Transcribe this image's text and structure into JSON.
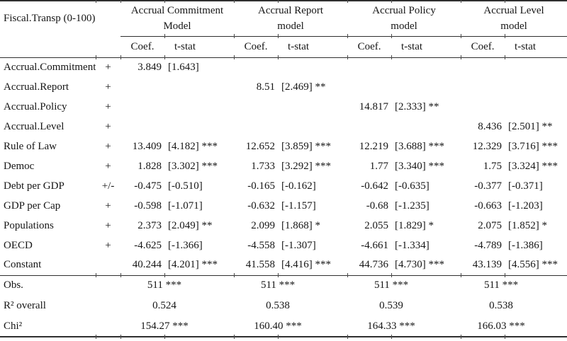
{
  "table": {
    "corner_label": "Fiscal.Transp (0-100)",
    "col_headers": {
      "coef": "Coef.",
      "tstat": "t-stat"
    },
    "models": [
      {
        "line1": "Accrual Commitment",
        "line2": "Model"
      },
      {
        "line1": "Accrual Report",
        "line2": "model"
      },
      {
        "line1": "Accrual Policy",
        "line2": "model"
      },
      {
        "line1": "Accrual Level",
        "line2": "model"
      }
    ],
    "rows": [
      {
        "label": "Accrual.Commitment",
        "sign": "+",
        "cells": [
          {
            "coef": "3.849",
            "tstat": "[1.643]"
          },
          {
            "coef": "",
            "tstat": ""
          },
          {
            "coef": "",
            "tstat": ""
          },
          {
            "coef": "",
            "tstat": ""
          }
        ]
      },
      {
        "label": "Accrual.Report",
        "sign": "+",
        "cells": [
          {
            "coef": "",
            "tstat": ""
          },
          {
            "coef": "8.51",
            "tstat": "[2.469] **"
          },
          {
            "coef": "",
            "tstat": ""
          },
          {
            "coef": "",
            "tstat": ""
          }
        ]
      },
      {
        "label": "Accrual.Policy",
        "sign": "+",
        "cells": [
          {
            "coef": "",
            "tstat": ""
          },
          {
            "coef": "",
            "tstat": ""
          },
          {
            "coef": "14.817",
            "tstat": "[2.333] **"
          },
          {
            "coef": "",
            "tstat": ""
          }
        ]
      },
      {
        "label": "Accrual.Level",
        "sign": "+",
        "cells": [
          {
            "coef": "",
            "tstat": ""
          },
          {
            "coef": "",
            "tstat": ""
          },
          {
            "coef": "",
            "tstat": ""
          },
          {
            "coef": "8.436",
            "tstat": "[2.501] **"
          }
        ]
      },
      {
        "label": "Rule of Law",
        "sign": "+",
        "cells": [
          {
            "coef": "13.409",
            "tstat": "[4.182] ***"
          },
          {
            "coef": "12.652",
            "tstat": "[3.859] ***"
          },
          {
            "coef": "12.219",
            "tstat": "[3.688] ***"
          },
          {
            "coef": "12.329",
            "tstat": "[3.716] ***"
          }
        ]
      },
      {
        "label": "Democ",
        "sign": "+",
        "cells": [
          {
            "coef": "1.828",
            "tstat": "[3.302] ***"
          },
          {
            "coef": "1.733",
            "tstat": "[3.292] ***"
          },
          {
            "coef": "1.77",
            "tstat": "[3.340] ***"
          },
          {
            "coef": "1.75",
            "tstat": "[3.324] ***"
          }
        ]
      },
      {
        "label": "Debt per GDP",
        "sign": "+/-",
        "cells": [
          {
            "coef": "-0.475",
            "tstat": "[-0.510]"
          },
          {
            "coef": "-0.165",
            "tstat": "[-0.162]"
          },
          {
            "coef": "-0.642",
            "tstat": "[-0.635]"
          },
          {
            "coef": "-0.377",
            "tstat": "[-0.371]"
          }
        ]
      },
      {
        "label": "GDP per Cap",
        "sign": "+",
        "cells": [
          {
            "coef": "-0.598",
            "tstat": "[-1.071]"
          },
          {
            "coef": "-0.632",
            "tstat": "[-1.157]"
          },
          {
            "coef": "-0.68",
            "tstat": "[-1.235]"
          },
          {
            "coef": "-0.663",
            "tstat": "[-1.203]"
          }
        ]
      },
      {
        "label": "Populations",
        "sign": "+",
        "cells": [
          {
            "coef": "2.373",
            "tstat": "[2.049] **"
          },
          {
            "coef": "2.099",
            "tstat": "[1.868] *"
          },
          {
            "coef": "2.055",
            "tstat": "[1.829] *"
          },
          {
            "coef": "2.075",
            "tstat": "[1.852] *"
          }
        ]
      },
      {
        "label": "OECD",
        "sign": "+",
        "cells": [
          {
            "coef": "-4.625",
            "tstat": "[-1.366]"
          },
          {
            "coef": "-4.558",
            "tstat": "[-1.307]"
          },
          {
            "coef": "-4.661",
            "tstat": "[-1.334]"
          },
          {
            "coef": "-4.789",
            "tstat": "[-1.386]"
          }
        ]
      },
      {
        "label": "Constant",
        "sign": "",
        "cells": [
          {
            "coef": "40.244",
            "tstat": "[4.201] ***"
          },
          {
            "coef": "41.558",
            "tstat": "[4.416] ***"
          },
          {
            "coef": "44.736",
            "tstat": "[4.730] ***"
          },
          {
            "coef": "43.139",
            "tstat": "[4.556] ***"
          }
        ]
      }
    ],
    "summary_rows": [
      {
        "label": "Obs.",
        "values": [
          "511 ***",
          "511 ***",
          "511 ***",
          "511 ***"
        ]
      },
      {
        "label": "R² overall",
        "values": [
          "0.524",
          "0.538",
          "0.539",
          "0.538"
        ]
      },
      {
        "label": "Chi²",
        "values": [
          "154.27 ***",
          "160.40 ***",
          "164.33 ***",
          "166.03 ***"
        ]
      }
    ]
  }
}
